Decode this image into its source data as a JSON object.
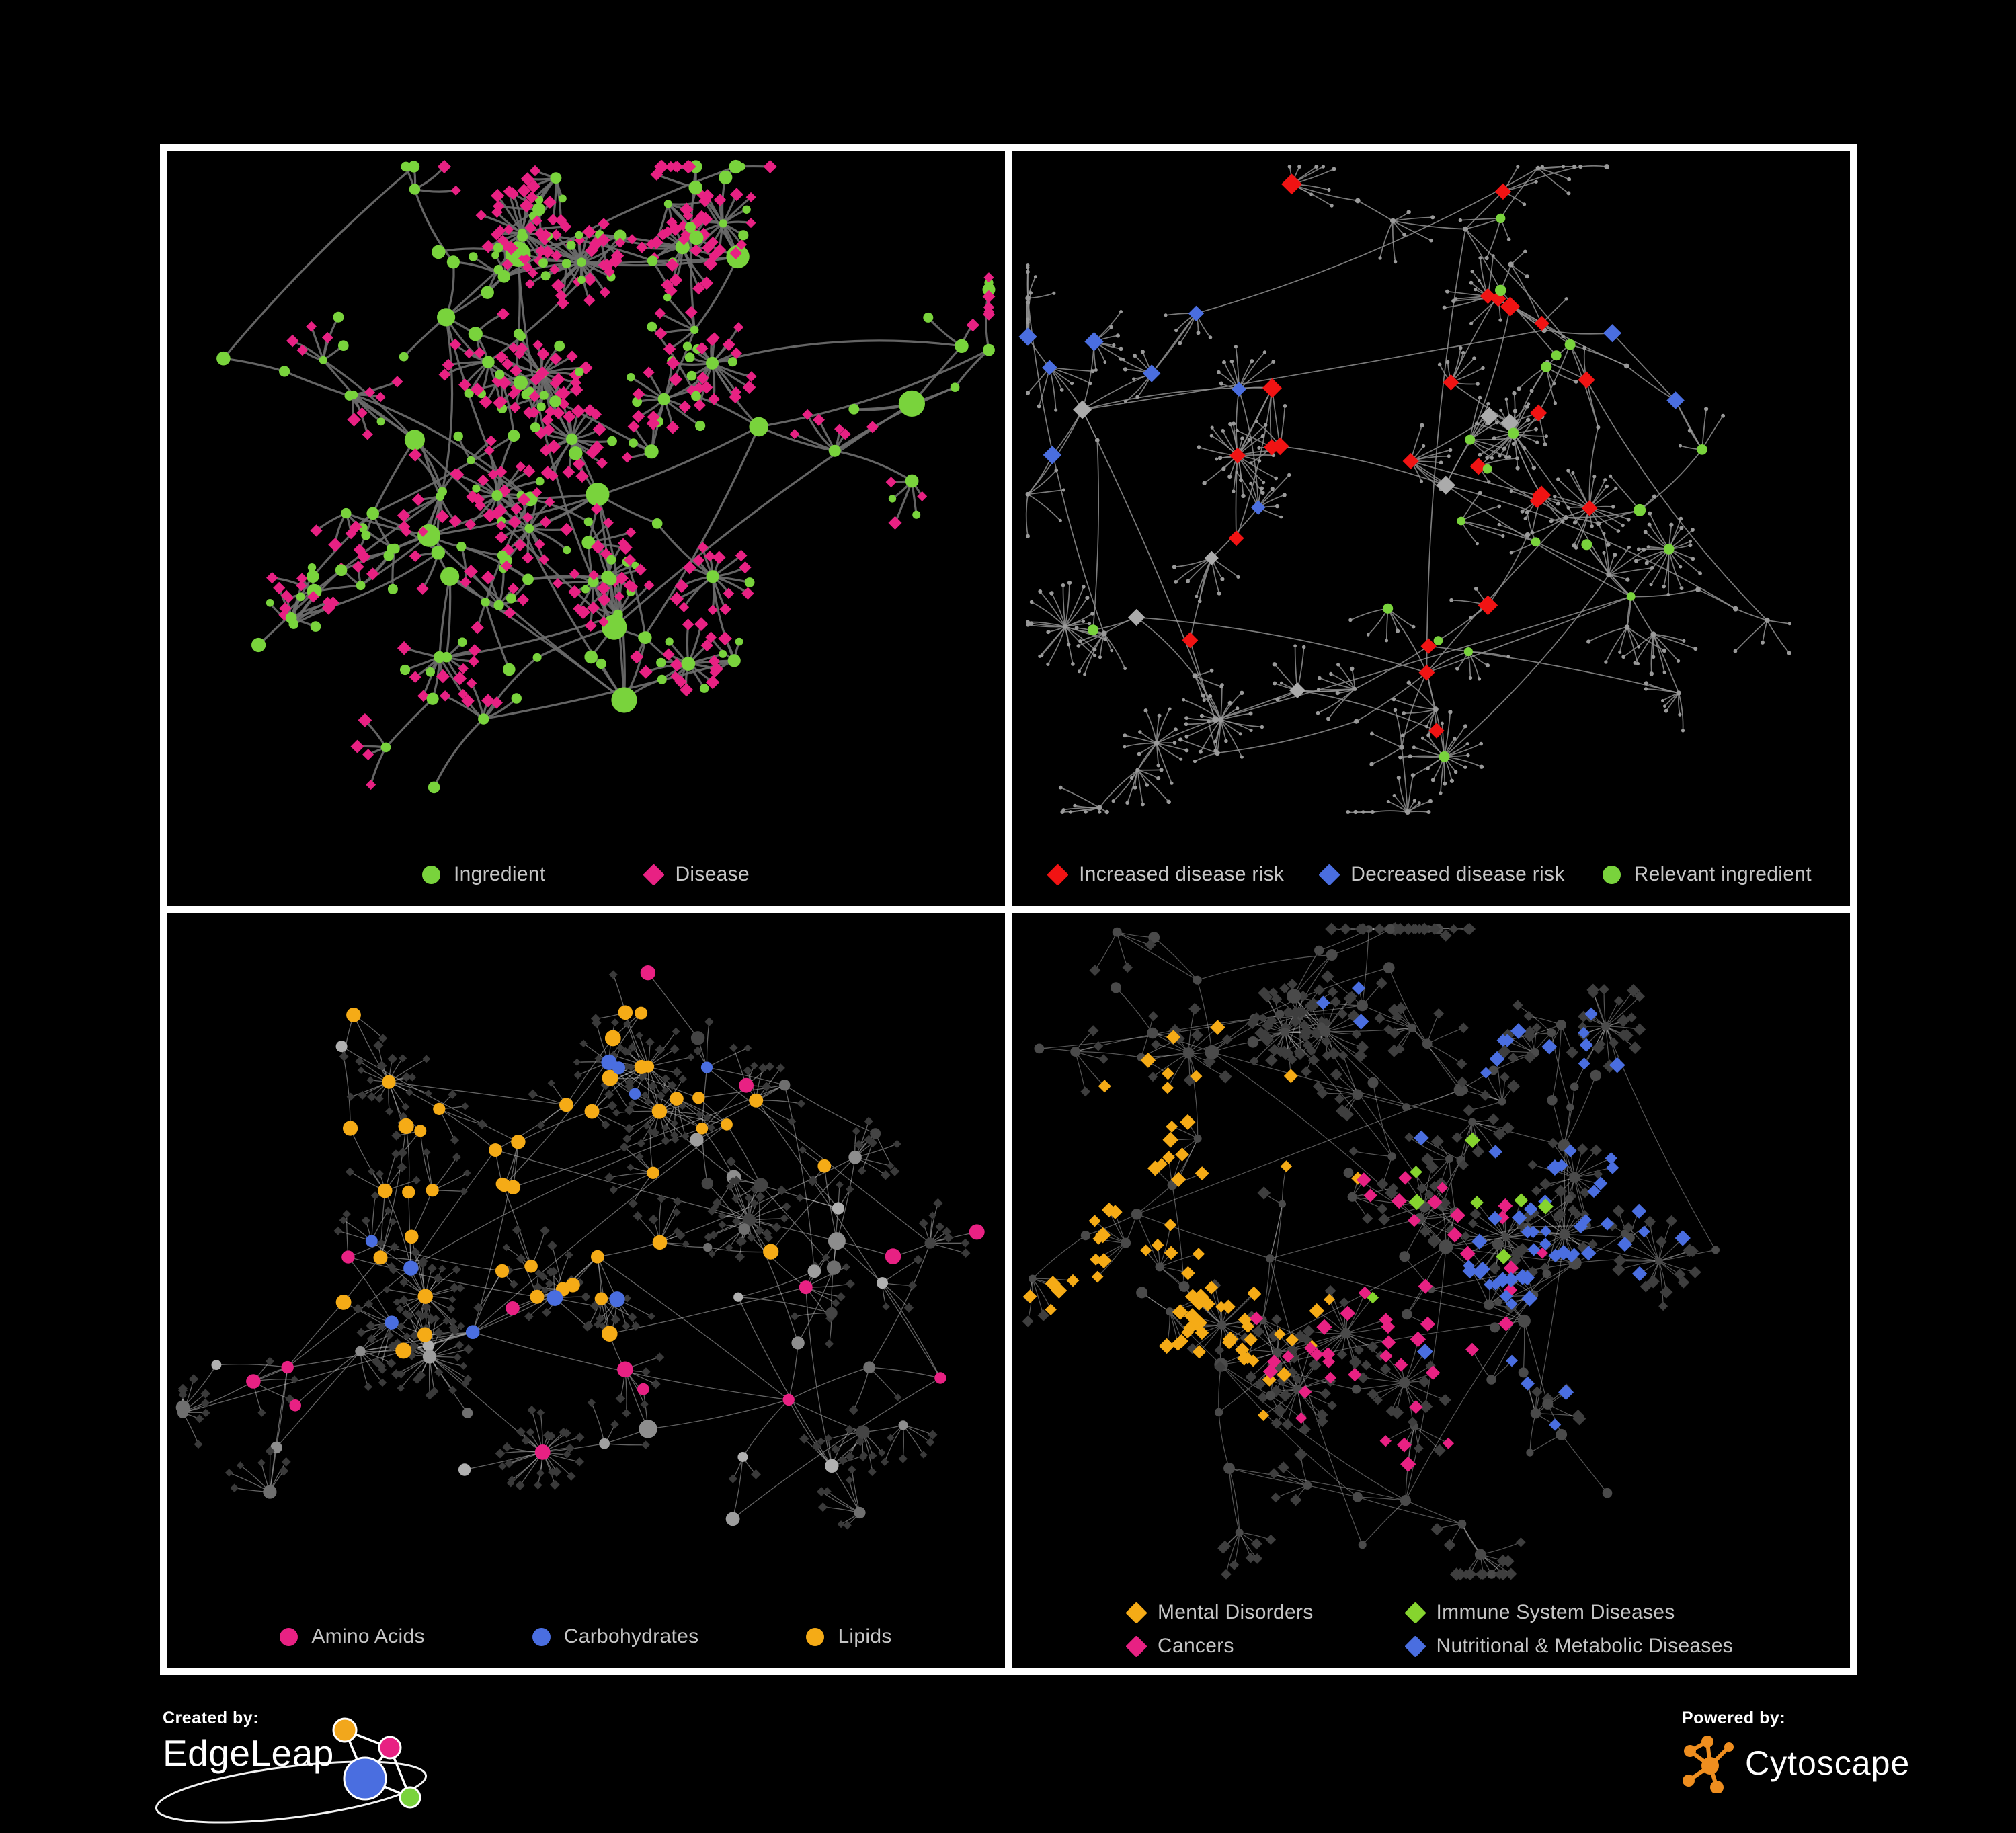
{
  "canvas": {
    "background": "#000000",
    "frame_color": "#ffffff"
  },
  "colors": {
    "ingredient_green": "#79d33c",
    "disease_pink": "#e82183",
    "risk_red": "#f11313",
    "risk_blue": "#4a6ee0",
    "neutral_silver": "#ababab",
    "lipid_orange": "#f5ab16",
    "immune_green": "#86d42e",
    "legend_text": "#c5c5c5"
  },
  "panels": [
    {
      "id": "ingredient-disease",
      "legend": [
        {
          "label": "Ingredient",
          "shape": "circle",
          "color": "#79d33c"
        },
        {
          "label": "Disease",
          "shape": "diamond",
          "color": "#e82183"
        }
      ],
      "network": {
        "seed": 11,
        "hubs": 11,
        "cross": 0.3,
        "edge": {
          "color": "#6d6d6d",
          "width": 3.2,
          "opacity": 0.92,
          "curve": 0.22
        },
        "base_internal": {
          "shape": "circle",
          "color": "#79d33c",
          "size": [
            6,
            11
          ],
          "hub_size": [
            13,
            20
          ]
        },
        "base_leaf": {
          "shape": "diamond",
          "color": "#e82183",
          "size": [
            7.5,
            10.5
          ]
        },
        "leaf_alt": {
          "shape": "circle",
          "color": "#79d33c",
          "size": [
            5.5,
            8
          ],
          "prob": 0.18
        },
        "highlights": []
      }
    },
    {
      "id": "disease-risk",
      "legend": [
        {
          "label": "Increased disease risk",
          "shape": "diamond",
          "color": "#f11313"
        },
        {
          "label": "Decreased disease risk",
          "shape": "diamond",
          "color": "#4a6ee0"
        },
        {
          "label": "Relevant ingredient",
          "shape": "circle",
          "color": "#79d33c"
        }
      ],
      "network": {
        "seed": 23,
        "hubs": 11,
        "cross": 0.34,
        "edge": {
          "color": "#909090",
          "width": 1.7,
          "opacity": 0.85,
          "curve": 0.15
        },
        "base_internal": {
          "shape": "circle",
          "color": "#9a9a9a",
          "size": [
            3,
            4.2
          ],
          "hub_size": [
            3.6,
            5
          ]
        },
        "base_leaf": {
          "shape": "circle",
          "color": "#9a9a9a",
          "size": [
            2.4,
            3.2
          ]
        },
        "highlights": [
          {
            "shape": "diamond",
            "color": "#f11313",
            "count": 24,
            "focus": [
              0.42,
              0.38
            ],
            "spread": 0.5,
            "size": 13,
            "pool": "internal"
          },
          {
            "shape": "diamond",
            "color": "#4a6ee0",
            "count": 8,
            "focus": [
              0.21,
              0.31
            ],
            "spread": 0.25,
            "size": 12,
            "pool": "internal"
          },
          {
            "shape": "diamond",
            "color": "#4a6ee0",
            "count": 2,
            "focus": [
              0.86,
              0.22
            ],
            "spread": 0.1,
            "size": 12,
            "pool": "internal"
          },
          {
            "shape": "diamond",
            "color": "#ababab",
            "count": 7,
            "focus": [
              0.33,
              0.44
            ],
            "spread": 0.45,
            "size": 12,
            "pool": "internal"
          },
          {
            "shape": "circle",
            "color": "#79d33c",
            "count": 20,
            "focus": [
              0.43,
              0.4
            ],
            "spread": 0.5,
            "size": 7.5,
            "pool": "internal"
          }
        ]
      }
    },
    {
      "id": "nutrient-classes",
      "legend": [
        {
          "label": "Amino Acids",
          "shape": "circle",
          "color": "#e82183"
        },
        {
          "label": "Carbohydrates",
          "shape": "circle",
          "color": "#4a6ee0"
        },
        {
          "label": "Lipids",
          "shape": "circle",
          "color": "#f5ab16"
        }
      ],
      "network": {
        "seed": 37,
        "hubs": 11,
        "cross": 0.38,
        "edge": {
          "color": "#c8c8c8",
          "width": 1.3,
          "opacity": 0.5,
          "curve": 0.12
        },
        "base_internal": {
          "shape": "circle",
          "colors": [
            "#8d8d8d",
            "#9e9e9e",
            "#b0b0b0",
            "#6f6f6f",
            "#444444"
          ],
          "size": [
            6.5,
            11
          ],
          "hub_size": [
            11,
            15
          ]
        },
        "base_leaf": {
          "shape": "diamond",
          "color": "#3a3a3a",
          "size": [
            5.5,
            7.5
          ]
        },
        "highlights": [
          {
            "shape": "circle",
            "color": "#f5ab16",
            "count": 46,
            "focus": [
              0.42,
              0.27
            ],
            "spread": 0.28,
            "size": 10,
            "pool": "internal"
          },
          {
            "shape": "circle",
            "color": "#4a6ee0",
            "count": 10,
            "focus": [
              0.4,
              0.31
            ],
            "spread": 0.2,
            "size": 10,
            "pool": "internal"
          },
          {
            "shape": "circle",
            "color": "#e82183",
            "count": 15,
            "focus": [
              0.48,
              0.62
            ],
            "spread": 1.5,
            "size": 10,
            "pool": "internal"
          }
        ]
      }
    },
    {
      "id": "disease-classes",
      "legend": [
        {
          "label": "Mental Disorders",
          "shape": "diamond",
          "color": "#f5ab16"
        },
        {
          "label": "Immune System Diseases",
          "shape": "diamond",
          "color": "#86d42e"
        },
        {
          "label": "Cancers",
          "shape": "diamond",
          "color": "#e82183"
        },
        {
          "label": "Nutritional & Metabolic Diseases",
          "shape": "diamond",
          "color": "#4a6ee0"
        }
      ],
      "network": {
        "seed": 53,
        "hubs": 11,
        "cross": 0.38,
        "edge": {
          "color": "#bfbfbf",
          "width": 1.2,
          "opacity": 0.45,
          "curve": 0.12
        },
        "base_internal": {
          "shape": "circle",
          "color": "#4a4a4a",
          "size": [
            5.5,
            8.5
          ],
          "hub_size": [
            8,
            11
          ]
        },
        "base_leaf": {
          "shape": "diamond",
          "color": "#3e3e3e",
          "size": [
            7,
            10
          ]
        },
        "highlights": [
          {
            "shape": "diamond",
            "color": "#f5ab16",
            "count": 75,
            "focus": [
              0.16,
              0.43
            ],
            "spread": 0.19,
            "size": 10,
            "pool": "leaf"
          },
          {
            "shape": "diamond",
            "color": "#e82183",
            "count": 46,
            "focus": [
              0.44,
              0.52
            ],
            "spread": 0.27,
            "size": 10,
            "pool": "leaf"
          },
          {
            "shape": "diamond",
            "color": "#4a6ee0",
            "count": 30,
            "focus": [
              0.61,
              0.54
            ],
            "spread": 0.21,
            "size": 10,
            "pool": "leaf"
          },
          {
            "shape": "diamond",
            "color": "#4a6ee0",
            "count": 34,
            "focus": [
              0.68,
              0.26
            ],
            "spread": 1.2,
            "size": 10,
            "pool": "leaf"
          },
          {
            "shape": "diamond",
            "color": "#86d42e",
            "count": 8,
            "focus": [
              0.5,
              0.42
            ],
            "spread": 0.9,
            "size": 10,
            "pool": "leaf"
          }
        ]
      }
    }
  ],
  "footer": {
    "created_by_label": "Created by:",
    "created_by_name": "EdgeLeap",
    "powered_by_label": "Powered by:",
    "powered_by_name": "Cytoscape",
    "edgeleap_colors": [
      "#f2a71c",
      "#e82183",
      "#4a6ee0",
      "#79d33c"
    ],
    "cytoscape_color": "#ef8e1f"
  }
}
